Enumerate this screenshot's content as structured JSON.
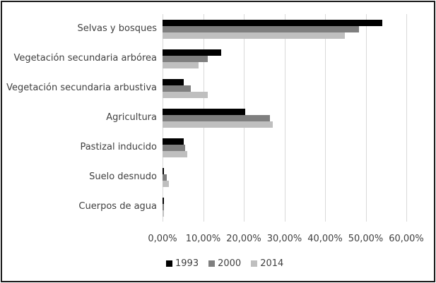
{
  "chart_data": {
    "type": "bar",
    "orientation": "horizontal",
    "title": "",
    "xlabel": "",
    "ylabel": "",
    "xlim": [
      0,
      60
    ],
    "grid": true,
    "legend_position": "bottom",
    "categories": [
      "Selvas y bosques",
      "Vegetación secundaria arbórea",
      "Vegetación secundaria arbustiva",
      "Agricultura",
      "Pastizal inducido",
      "Suelo desnudo",
      "Cuerpos de agua"
    ],
    "series": [
      {
        "name": "1993",
        "color": "#000000",
        "values": [
          54.1,
          14.5,
          5.2,
          20.4,
          5.3,
          0.4,
          0.4
        ]
      },
      {
        "name": "2000",
        "color": "#7f7f7f",
        "values": [
          48.3,
          11.1,
          7.0,
          26.5,
          5.6,
          1.0,
          0.2
        ]
      },
      {
        "name": "2014",
        "color": "#bfbfbf",
        "values": [
          44.8,
          8.9,
          11.1,
          27.2,
          6.0,
          1.6,
          0.2
        ]
      }
    ],
    "x_ticks": [
      "0,00%",
      "10,00%",
      "20,00%",
      "30,00%",
      "40,00%",
      "50,00%",
      "60,00%"
    ]
  }
}
